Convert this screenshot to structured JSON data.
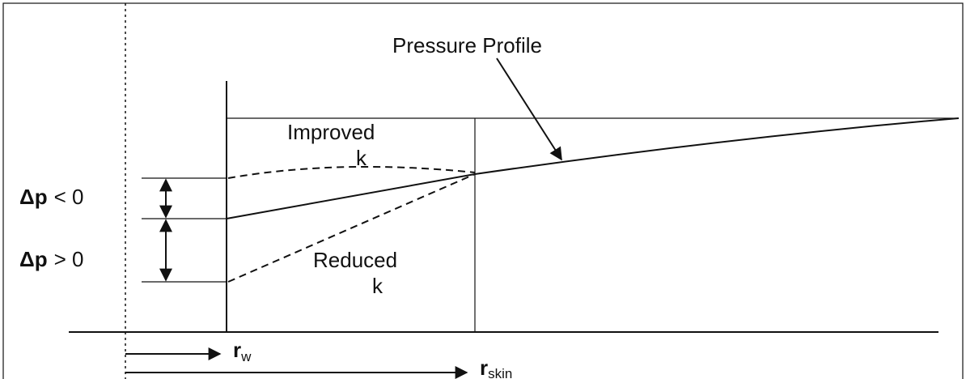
{
  "title": "Pressure Profile",
  "zones": [
    {
      "label": "Improved",
      "symbol": "k"
    },
    {
      "label": "Reduced",
      "symbol": "k"
    }
  ],
  "pressure_drops": [
    {
      "quantity": "Δp",
      "relation": "< 0"
    },
    {
      "quantity": "Δp",
      "relation": "> 0"
    }
  ],
  "radii": [
    {
      "base": "r",
      "sub": "w"
    },
    {
      "base": "r",
      "sub": "skin"
    }
  ]
}
